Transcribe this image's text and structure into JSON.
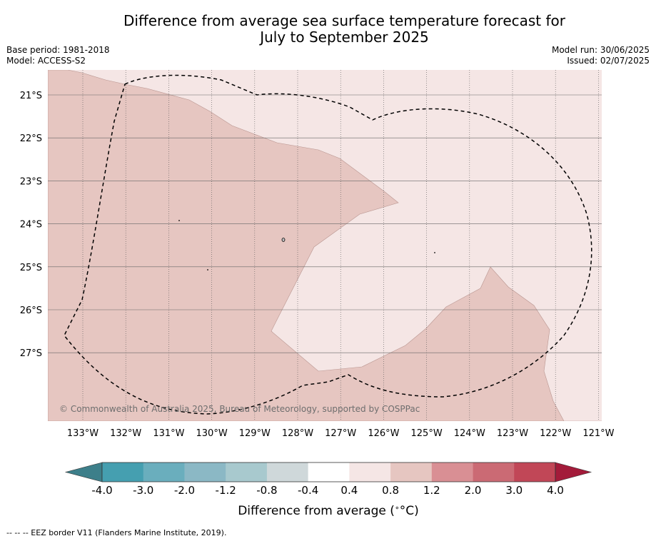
{
  "title_line1": "Difference from average sea surface temperature forecast for",
  "title_line2": "July to September 2025",
  "meta_left": {
    "base_period": "Base period: 1981-2018",
    "model": "Model: ACCESS-S2"
  },
  "meta_right": {
    "model_run": "Model run: 30/06/2025",
    "issued": "Issued: 02/07/2025"
  },
  "copyright": "© Commonwealth of Australia 2025, Bureau of Meteorology, supported by COSPPac",
  "map": {
    "lon_labels": [
      "133°W",
      "132°W",
      "131°W",
      "130°W",
      "129°W",
      "128°W",
      "127°W",
      "126°W",
      "125°W",
      "124°W",
      "123°W",
      "122°W",
      "121°W"
    ],
    "lat_labels": [
      "21°S",
      "22°S",
      "23°S",
      "24°S",
      "25°S",
      "26°S",
      "27°S"
    ],
    "colors": {
      "band_0_4_to_0_8": "#f5e6e5",
      "band_0_8_to_1_2": "#e6c6c1"
    }
  },
  "colorbar": {
    "label": "Difference from average (°C)",
    "label_prefix": "Difference from average (",
    "label_unit": "°C",
    "label_suffix": ")",
    "tick_labels": [
      "-4.0",
      "-3.0",
      "-2.0",
      "-1.2",
      "-0.8",
      "-0.4",
      "0.4",
      "0.8",
      "1.2",
      "2.0",
      "3.0",
      "4.0"
    ],
    "colors": [
      "#3d7f8a",
      "#459fb0",
      "#6aaebd",
      "#8bb8c5",
      "#a8c9ce",
      "#cfd8da",
      "#ffffff",
      "#f5e6e5",
      "#e6c6c1",
      "#d98f94",
      "#cb6a74",
      "#c14757",
      "#a31b3a"
    ]
  },
  "footer": "--  --  -- EEZ border V11 (Flanders Marine Institute, 2019)."
}
